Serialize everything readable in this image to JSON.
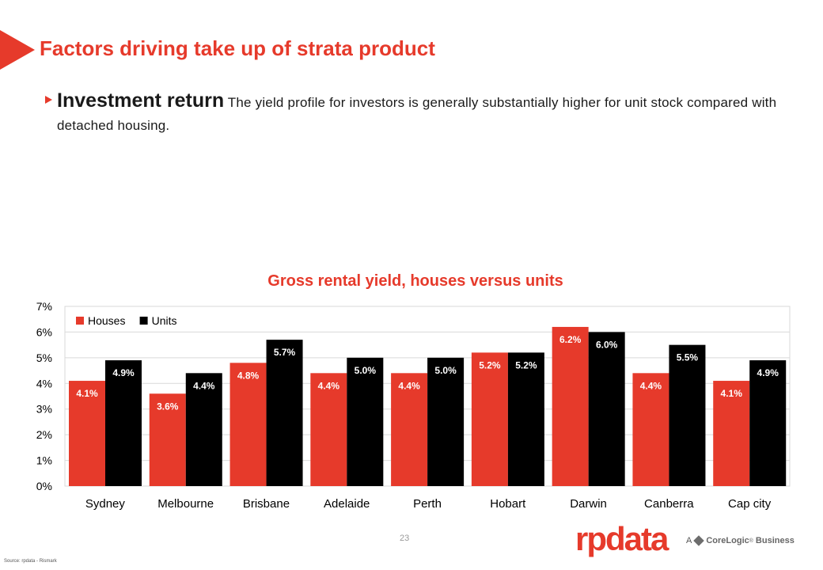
{
  "page": {
    "title": "Factors driving take up of strata product",
    "bullet_heading": "Investment return",
    "bullet_text": "The yield profile for investors is generally substantially higher for unit stock compared with detached housing.",
    "page_number": "23",
    "source": "Source: rpdata - Rismark",
    "logo_text": "rpdata",
    "corelogic": {
      "prefix": "A",
      "name": "CoreLogic",
      "mark": "®",
      "suffix": "Business"
    }
  },
  "colors": {
    "accent": "#e63a2b",
    "units": "#000000",
    "grid": "#d9d9d9"
  },
  "icons": {
    "title_marker": "triangle-arrow-icon",
    "bullet_marker": "triangle-bullet-icon",
    "corelogic": "corelogic-cube-icon"
  },
  "chart_data": {
    "type": "bar",
    "title": "Gross rental yield, houses versus units",
    "categories": [
      "Sydney",
      "Melbourne",
      "Brisbane",
      "Adelaide",
      "Perth",
      "Hobart",
      "Darwin",
      "Canberra",
      "Cap city"
    ],
    "series": [
      {
        "name": "Houses",
        "color": "#e63a2b",
        "values": [
          4.1,
          3.6,
          4.8,
          4.4,
          4.4,
          5.2,
          6.2,
          4.4,
          4.1
        ],
        "labels": [
          "4.1%",
          "3.6%",
          "4.8%",
          "4.4%",
          "4.4%",
          "5.2%",
          "6.2%",
          "4.4%",
          "4.1%"
        ]
      },
      {
        "name": "Units",
        "color": "#000000",
        "values": [
          4.9,
          4.4,
          5.7,
          5.0,
          5.0,
          5.2,
          6.0,
          5.5,
          4.9
        ],
        "labels": [
          "4.9%",
          "4.4%",
          "5.7%",
          "5.0%",
          "5.0%",
          "5.2%",
          "6.0%",
          "5.5%",
          "4.9%"
        ]
      }
    ],
    "yticks": [
      "0%",
      "1%",
      "2%",
      "3%",
      "4%",
      "5%",
      "6%",
      "7%"
    ],
    "ylim": [
      0,
      7
    ],
    "legend_position": "top-left",
    "grid": true
  }
}
